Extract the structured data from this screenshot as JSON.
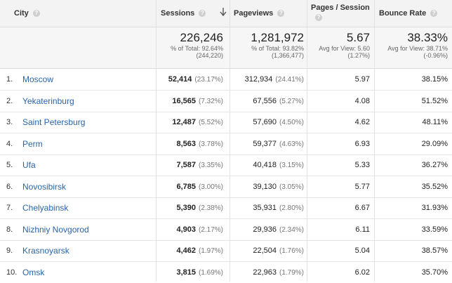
{
  "header": {
    "city": "City",
    "sessions": "Sessions",
    "pageviews": "Pageviews",
    "pages_session": "Pages / Session",
    "bounce_rate": "Bounce Rate",
    "help_glyph": "?"
  },
  "totals": {
    "sessions": {
      "value": "226,246",
      "line1": "% of Total: 92.64%",
      "line2": "(244,220)"
    },
    "pageviews": {
      "value": "1,281,972",
      "line1": "% of Total: 93.82%",
      "line2": "(1,366,477)"
    },
    "pages_session": {
      "value": "5.67",
      "line1": "Avg for View: 5.60",
      "line2": "(1.27%)"
    },
    "bounce_rate": {
      "value": "38.33%",
      "line1": "Avg for View: 38.71%",
      "line2": "(-0.96%)"
    }
  },
  "rows": [
    {
      "index": "1.",
      "city": "Moscow",
      "sessions": "52,414",
      "sessions_pct": "(23.17%)",
      "pageviews": "312,934",
      "pageviews_pct": "(24.41%)",
      "pages_session": "5.97",
      "bounce_rate": "38.15%"
    },
    {
      "index": "2.",
      "city": "Yekaterinburg",
      "sessions": "16,565",
      "sessions_pct": "(7.32%)",
      "pageviews": "67,556",
      "pageviews_pct": "(5.27%)",
      "pages_session": "4.08",
      "bounce_rate": "51.52%"
    },
    {
      "index": "3.",
      "city": "Saint Petersburg",
      "sessions": "12,487",
      "sessions_pct": "(5.52%)",
      "pageviews": "57,690",
      "pageviews_pct": "(4.50%)",
      "pages_session": "4.62",
      "bounce_rate": "48.11%"
    },
    {
      "index": "4.",
      "city": "Perm",
      "sessions": "8,563",
      "sessions_pct": "(3.78%)",
      "pageviews": "59,377",
      "pageviews_pct": "(4.63%)",
      "pages_session": "6.93",
      "bounce_rate": "29.09%"
    },
    {
      "index": "5.",
      "city": "Ufa",
      "sessions": "7,587",
      "sessions_pct": "(3.35%)",
      "pageviews": "40,418",
      "pageviews_pct": "(3.15%)",
      "pages_session": "5.33",
      "bounce_rate": "36.27%"
    },
    {
      "index": "6.",
      "city": "Novosibirsk",
      "sessions": "6,785",
      "sessions_pct": "(3.00%)",
      "pageviews": "39,130",
      "pageviews_pct": "(3.05%)",
      "pages_session": "5.77",
      "bounce_rate": "35.52%"
    },
    {
      "index": "7.",
      "city": "Chelyabinsk",
      "sessions": "5,390",
      "sessions_pct": "(2.38%)",
      "pageviews": "35,931",
      "pageviews_pct": "(2.80%)",
      "pages_session": "6.67",
      "bounce_rate": "31.93%"
    },
    {
      "index": "8.",
      "city": "Nizhniy Novgorod",
      "sessions": "4,903",
      "sessions_pct": "(2.17%)",
      "pageviews": "29,936",
      "pageviews_pct": "(2.34%)",
      "pages_session": "6.11",
      "bounce_rate": "33.59%"
    },
    {
      "index": "9.",
      "city": "Krasnoyarsk",
      "sessions": "4,462",
      "sessions_pct": "(1.97%)",
      "pageviews": "22,504",
      "pageviews_pct": "(1.76%)",
      "pages_session": "5.04",
      "bounce_rate": "38.57%"
    },
    {
      "index": "10.",
      "city": "Omsk",
      "sessions": "3,815",
      "sessions_pct": "(1.69%)",
      "pageviews": "22,963",
      "pageviews_pct": "(1.79%)",
      "pages_session": "6.02",
      "bounce_rate": "35.70%"
    }
  ],
  "colors": {
    "link": "#2a64a8",
    "header_bg": "#f3f3f3"
  },
  "icons": {
    "help": "help-icon",
    "sort": "sort-down-arrow-icon"
  }
}
